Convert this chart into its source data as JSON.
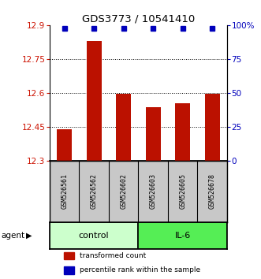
{
  "title": "GDS3773 / 10541410",
  "samples": [
    "GSM526561",
    "GSM526562",
    "GSM526602",
    "GSM526603",
    "GSM526605",
    "GSM526678"
  ],
  "bar_values": [
    12.44,
    12.83,
    12.595,
    12.535,
    12.555,
    12.595
  ],
  "percentile_values": [
    99,
    99,
    99,
    99,
    99,
    99
  ],
  "ylim": [
    12.3,
    12.9
  ],
  "yticks": [
    12.3,
    12.45,
    12.6,
    12.75,
    12.9
  ],
  "ytick_labels": [
    "12.3",
    "12.45",
    "12.6",
    "12.75",
    "12.9"
  ],
  "right_yticks": [
    0,
    25,
    50,
    75,
    100
  ],
  "right_ytick_labels": [
    "0",
    "25",
    "50",
    "75",
    "100%"
  ],
  "bar_color": "#BB1100",
  "percentile_color": "#0000BB",
  "bg_color": "#FFFFFF",
  "group_labels": [
    "control",
    "IL-6"
  ],
  "group_ranges": [
    [
      0,
      3
    ],
    [
      3,
      6
    ]
  ],
  "group_colors_light": [
    "#CCFFCC",
    "#55EE55"
  ],
  "sample_bg_color": "#C8C8C8",
  "ylabel_color_left": "#CC1100",
  "ylabel_color_right": "#0000BB",
  "legend_entries": [
    "transformed count",
    "percentile rank within the sample"
  ],
  "agent_label": "agent",
  "n_samples": 6
}
